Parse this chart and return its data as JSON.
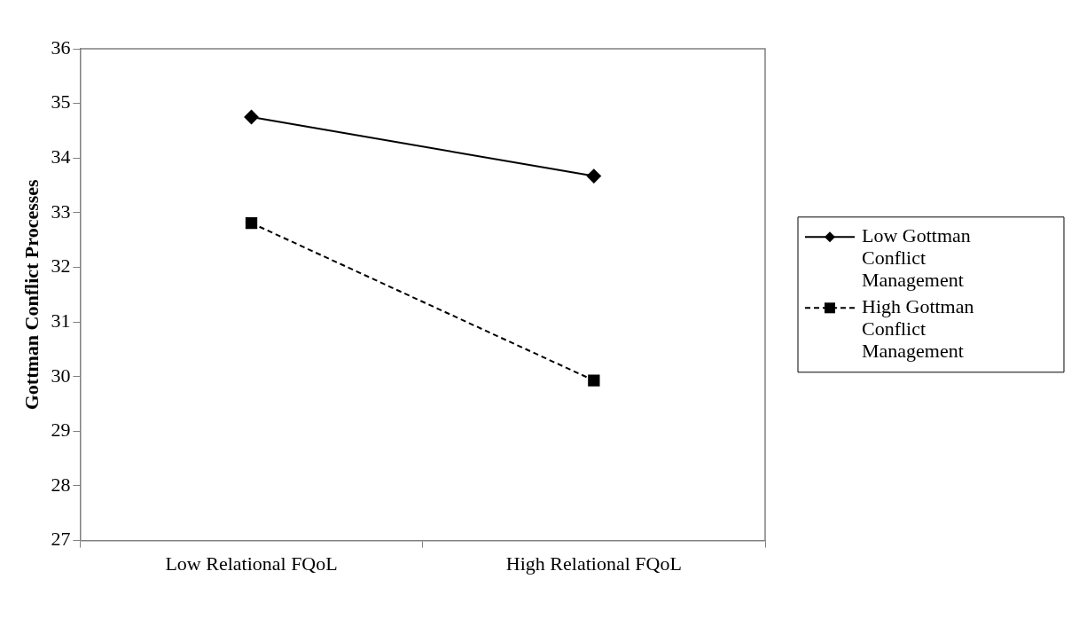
{
  "chart_data": {
    "type": "line",
    "ylabel": "Gottman Conflict Processes",
    "categories": [
      "Low Relational FQoL",
      "High Relational FQoL"
    ],
    "ylim": [
      27,
      36
    ],
    "yticks": [
      27,
      28,
      29,
      30,
      31,
      32,
      33,
      34,
      35,
      36
    ],
    "grid": false,
    "legend": "right",
    "series": [
      {
        "name": "Low Gottman Conflict Management",
        "color": "#000000",
        "values": [
          34.75,
          33.67
        ],
        "marker": "diamond",
        "line_style": "solid"
      },
      {
        "name": "High Gottman Conflict Management",
        "color": "#000000",
        "values": [
          32.81,
          29.93
        ],
        "marker": "square",
        "line_style": "dashed"
      }
    ]
  }
}
